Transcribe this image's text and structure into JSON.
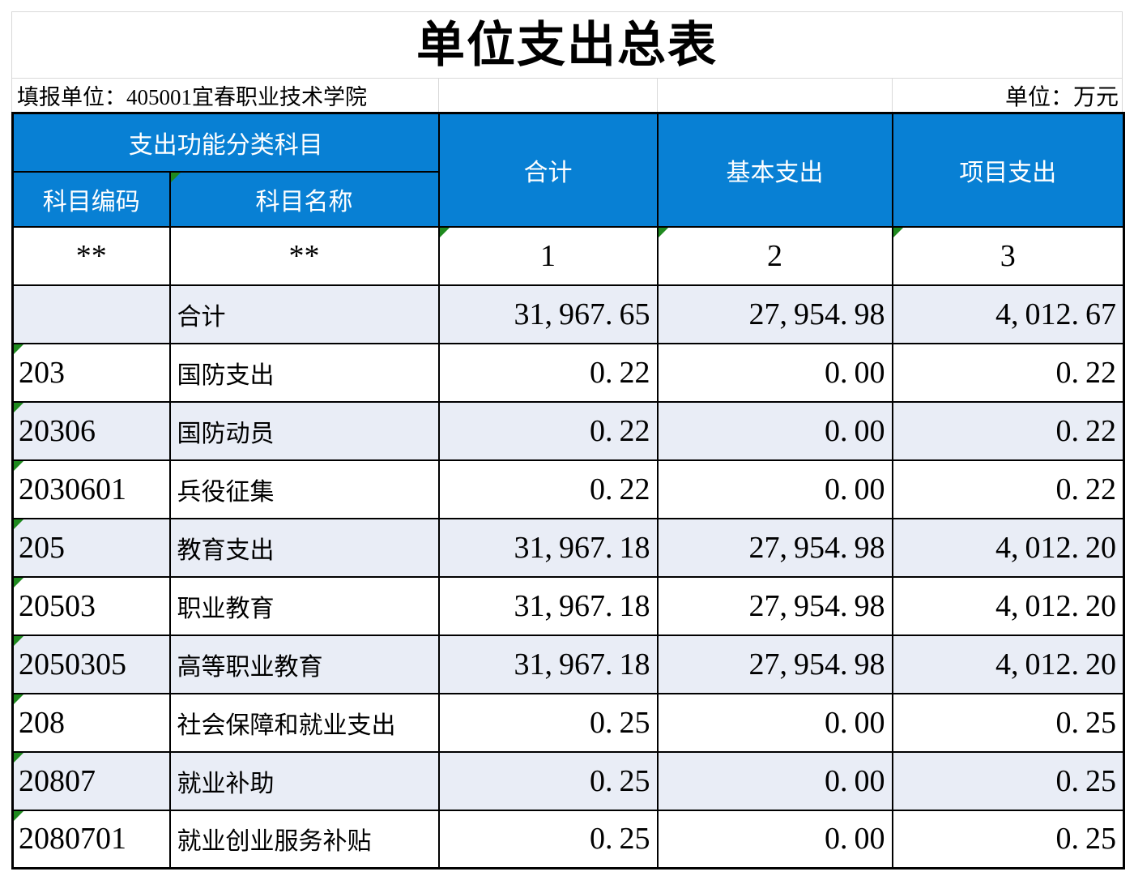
{
  "title": "单位支出总表",
  "meta": {
    "reporting_unit": "填报单位：405001宜春职业技术学院",
    "unit_label": "单位：万元"
  },
  "table": {
    "header": {
      "func_group": "支出功能分类科目",
      "code": "科目编码",
      "name": "科目名称",
      "total": "合计",
      "basic": "基本支出",
      "project": "项目支出"
    },
    "placeholder_row": {
      "code": "**",
      "name": "**",
      "total": "1",
      "basic": "2",
      "project": "3"
    },
    "rows": [
      {
        "code": "",
        "name": "合计",
        "total": "31,967.65",
        "basic": "27,954.98",
        "project": "4,012.67"
      },
      {
        "code": "203",
        "name": "国防支出",
        "total": "0.22",
        "basic": "0.00",
        "project": "0.22"
      },
      {
        "code": "20306",
        "name": "国防动员",
        "total": "0.22",
        "basic": "0.00",
        "project": "0.22"
      },
      {
        "code": "2030601",
        "name": "兵役征集",
        "total": "0.22",
        "basic": "0.00",
        "project": "0.22"
      },
      {
        "code": "205",
        "name": "教育支出",
        "total": "31,967.18",
        "basic": "27,954.98",
        "project": "4,012.20"
      },
      {
        "code": "20503",
        "name": "职业教育",
        "total": "31,967.18",
        "basic": "27,954.98",
        "project": "4,012.20"
      },
      {
        "code": "2050305",
        "name": "高等职业教育",
        "total": "31,967.18",
        "basic": "27,954.98",
        "project": "4,012.20"
      },
      {
        "code": "208",
        "name": "社会保障和就业支出",
        "total": "0.25",
        "basic": "0.00",
        "project": "0.25"
      },
      {
        "code": "20807",
        "name": "就业补助",
        "total": "0.25",
        "basic": "0.00",
        "project": "0.25"
      },
      {
        "code": "2080701",
        "name": "就业创业服务补贴",
        "total": "0.25",
        "basic": "0.00",
        "project": "0.25"
      }
    ],
    "colors": {
      "header_bg": "#0880d4",
      "band_bg": "#e9edf6",
      "border": "#000000",
      "gridline": "#d9d9d9",
      "error_marker": "#1f8a1f"
    }
  }
}
